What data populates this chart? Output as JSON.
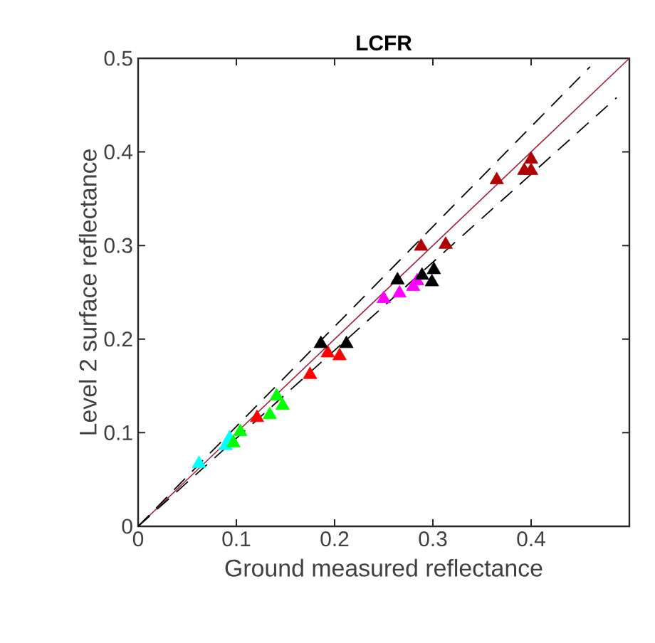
{
  "chart_data": {
    "type": "scatter",
    "title": "LCFR",
    "xlabel": "Ground measured reflectance",
    "ylabel": "Level 2 surface reflectance",
    "xlim": [
      0,
      0.5
    ],
    "ylim": [
      0,
      0.5
    ],
    "xticks": [
      0,
      0.1,
      0.2,
      0.3,
      0.4
    ],
    "yticks": [
      0,
      0.1,
      0.2,
      0.3,
      0.4,
      0.5
    ],
    "grid": false,
    "marker": "triangle",
    "series": [
      {
        "type": "line",
        "color": "#a0203a",
        "marker": "none",
        "line_style": "solid",
        "x": [
          0,
          0.5
        ],
        "values": [
          0,
          0.5
        ]
      },
      {
        "type": "line",
        "color": "#000000",
        "marker": "none",
        "line_style": "dashed",
        "x": [
          0,
          0.46
        ],
        "values": [
          0,
          0.491
        ]
      },
      {
        "type": "line",
        "color": "#000000",
        "marker": "none",
        "line_style": "dashed",
        "x": [
          0,
          0.487
        ],
        "values": [
          0,
          0.458
        ]
      },
      {
        "color": "#00ffff",
        "x": [
          0.062,
          0.089,
          0.093
        ],
        "values": [
          0.067,
          0.086,
          0.094
        ]
      },
      {
        "color": "#00ff00",
        "x": [
          0.104,
          0.097,
          0.134,
          0.141,
          0.147
        ],
        "values": [
          0.101,
          0.089,
          0.119,
          0.139,
          0.129
        ]
      },
      {
        "color": "#ff0000",
        "x": [
          0.121,
          0.175,
          0.193,
          0.205
        ],
        "values": [
          0.116,
          0.162,
          0.185,
          0.182
        ]
      },
      {
        "color": "#ff00ff",
        "x": [
          0.25,
          0.266,
          0.28,
          0.284
        ],
        "values": [
          0.243,
          0.249,
          0.256,
          0.262
        ]
      },
      {
        "color": "#000000",
        "x": [
          0.186,
          0.212,
          0.264,
          0.289,
          0.301,
          0.299
        ],
        "values": [
          0.195,
          0.195,
          0.263,
          0.268,
          0.274,
          0.261
        ]
      },
      {
        "color": "#b00000",
        "x": [
          0.288,
          0.313,
          0.365,
          0.393,
          0.4,
          0.4
        ],
        "values": [
          0.299,
          0.301,
          0.37,
          0.38,
          0.38,
          0.392
        ]
      }
    ]
  }
}
